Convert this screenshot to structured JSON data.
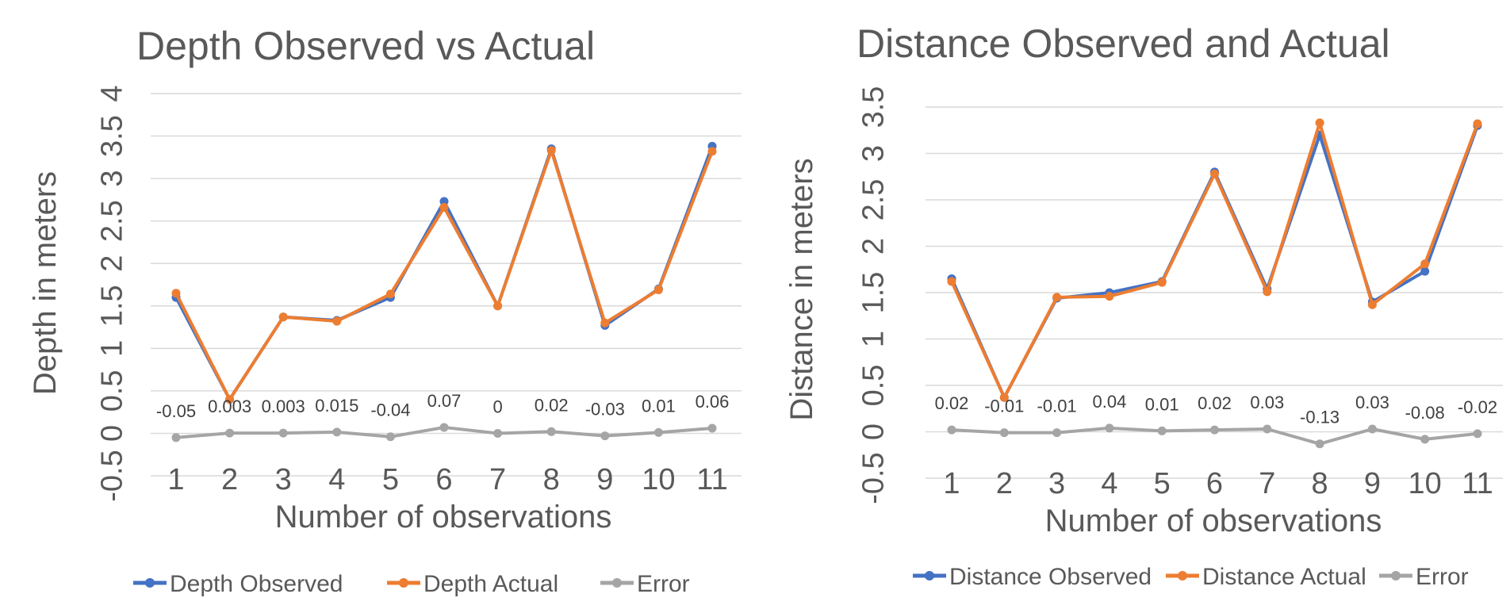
{
  "colors": {
    "observed": "#4472C4",
    "actual": "#ED7D31",
    "error": "#A5A5A5"
  },
  "chart_data": [
    {
      "type": "line",
      "title": "Depth Observed vs Actual",
      "xlabel": "Number of observations",
      "ylabel": "Depth in meters",
      "categories": [
        "1",
        "2",
        "3",
        "4",
        "5",
        "6",
        "7",
        "8",
        "9",
        "10",
        "11"
      ],
      "ylim": [
        -0.5,
        4
      ],
      "yticks": [
        "-0.5",
        "0",
        "0.5",
        "1",
        "1.5",
        "2",
        "2.5",
        "3",
        "3.5",
        "4"
      ],
      "grid": true,
      "legend_position": "bottom",
      "series": [
        {
          "name": "Depth Observed",
          "color_key": "observed",
          "values": [
            1.6,
            0.4,
            1.37,
            1.33,
            1.6,
            2.73,
            1.5,
            3.35,
            1.27,
            1.7,
            3.38
          ]
        },
        {
          "name": "Depth Actual",
          "color_key": "actual",
          "values": [
            1.65,
            0.4,
            1.37,
            1.32,
            1.64,
            2.66,
            1.5,
            3.33,
            1.3,
            1.69,
            3.32
          ]
        },
        {
          "name": "Error",
          "color_key": "error",
          "values": [
            -0.05,
            0.003,
            0.003,
            0.015,
            -0.04,
            0.07,
            0,
            0.02,
            -0.03,
            0.01,
            0.06
          ],
          "labels": [
            "-0.05",
            "0.003",
            "0.003",
            "0.015",
            "-0.04",
            "0.07",
            "0",
            "0.02",
            "-0.03",
            "0.01",
            "0.06"
          ]
        }
      ]
    },
    {
      "type": "line",
      "title": "Distance Observed and Actual",
      "xlabel": "Number of observations",
      "ylabel": "Distance in meters",
      "categories": [
        "1",
        "2",
        "3",
        "4",
        "5",
        "6",
        "7",
        "8",
        "9",
        "10",
        "11"
      ],
      "ylim": [
        -0.5,
        3.5
      ],
      "yticks": [
        "-0.5",
        "0",
        "0.5",
        "1",
        "1.5",
        "2",
        "2.5",
        "3",
        "3.5"
      ],
      "grid": true,
      "legend_position": "bottom",
      "series": [
        {
          "name": "Distance Observed",
          "color_key": "observed",
          "values": [
            1.65,
            0.37,
            1.44,
            1.5,
            1.62,
            2.8,
            1.54,
            3.2,
            1.4,
            1.73,
            3.3
          ]
        },
        {
          "name": "Distance Actual",
          "color_key": "actual",
          "values": [
            1.62,
            0.37,
            1.45,
            1.46,
            1.61,
            2.78,
            1.51,
            3.33,
            1.37,
            1.81,
            3.32
          ]
        },
        {
          "name": "Error",
          "color_key": "error",
          "values": [
            0.02,
            -0.01,
            -0.01,
            0.04,
            0.01,
            0.02,
            0.03,
            -0.13,
            0.03,
            -0.08,
            -0.02
          ],
          "labels": [
            "0.02",
            "-0.01",
            "-0.01",
            "0.04",
            "0.01",
            "0.02",
            "0.03",
            "-0.13",
            "0.03",
            "-0.08",
            "-0.02"
          ]
        }
      ]
    }
  ]
}
